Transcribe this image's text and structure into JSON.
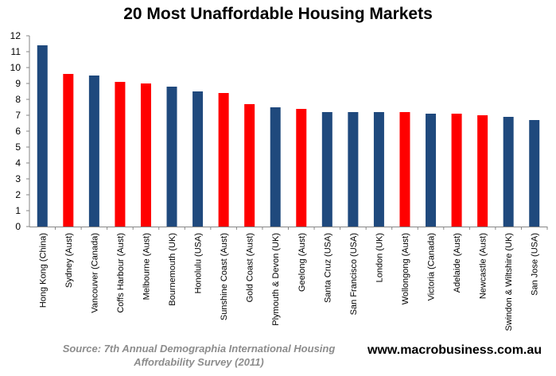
{
  "chart_data": {
    "type": "bar",
    "title": "20 Most Unaffordable Housing Markets",
    "categories": [
      "Hong Kong (China)",
      "Sydney (Aust)",
      "Vancouver (Canada)",
      "Coffs Harbour (Aust)",
      "Melbourne (Aust)",
      "Bournemouth (UK)",
      "Honolulu (USA)",
      "Sunshine Coast (Aust)",
      "Gold Coast (Aust)",
      "Plymouth & Devon (UK)",
      "Geelong (Aust)",
      "Santa Cruz (USA)",
      "San Francisco (USA)",
      "London (UK)",
      "Wollongong (Aust)",
      "Victoria (Canada)",
      "Adelaide (Aust)",
      "Newcastle (Aust)",
      "Swindon & Wiltshire (UK)",
      "San Jose (USA)"
    ],
    "values": [
      11.4,
      9.6,
      9.5,
      9.1,
      9.0,
      8.8,
      8.5,
      8.4,
      7.7,
      7.5,
      7.4,
      7.2,
      7.2,
      7.2,
      7.2,
      7.1,
      7.1,
      7.0,
      6.9,
      6.7
    ],
    "highlight": [
      false,
      true,
      false,
      true,
      true,
      false,
      false,
      true,
      true,
      false,
      true,
      false,
      false,
      false,
      true,
      false,
      true,
      true,
      false,
      false
    ],
    "colors": {
      "default": "#1f497d",
      "highlight": "#ff0000"
    },
    "xlabel": "",
    "ylabel": "",
    "ylim": [
      0,
      12
    ],
    "yticks": [
      "0",
      "1",
      "2",
      "3",
      "4",
      "5",
      "6",
      "7",
      "8",
      "9",
      "10",
      "11",
      "12"
    ],
    "grid": false,
    "legend": "none"
  },
  "footer": {
    "source_line1": "Source: 7th  Annual Demographia International Housing",
    "source_line2": "Affordability Survey (2011)",
    "site": "www.macrobusiness.com.au"
  }
}
